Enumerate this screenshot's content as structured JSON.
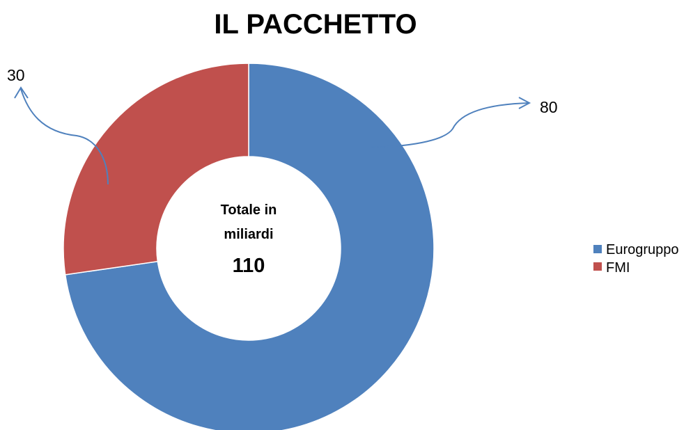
{
  "chart_data": {
    "type": "pie",
    "variant": "donut",
    "title": "IL PACCHETTO",
    "categories": [
      "Eurogruppo",
      "FMI"
    ],
    "values": [
      80,
      30
    ],
    "colors": [
      "#4F81BD",
      "#C0504D"
    ],
    "data_labels": [
      "80",
      "30"
    ],
    "center_text": {
      "line1": "Totale in",
      "line2": "miliardi",
      "total": "110"
    },
    "legend": {
      "position": "right",
      "items": [
        "Eurogruppo",
        "FMI"
      ]
    },
    "annotation_arrow_color": "#4F81BD"
  }
}
